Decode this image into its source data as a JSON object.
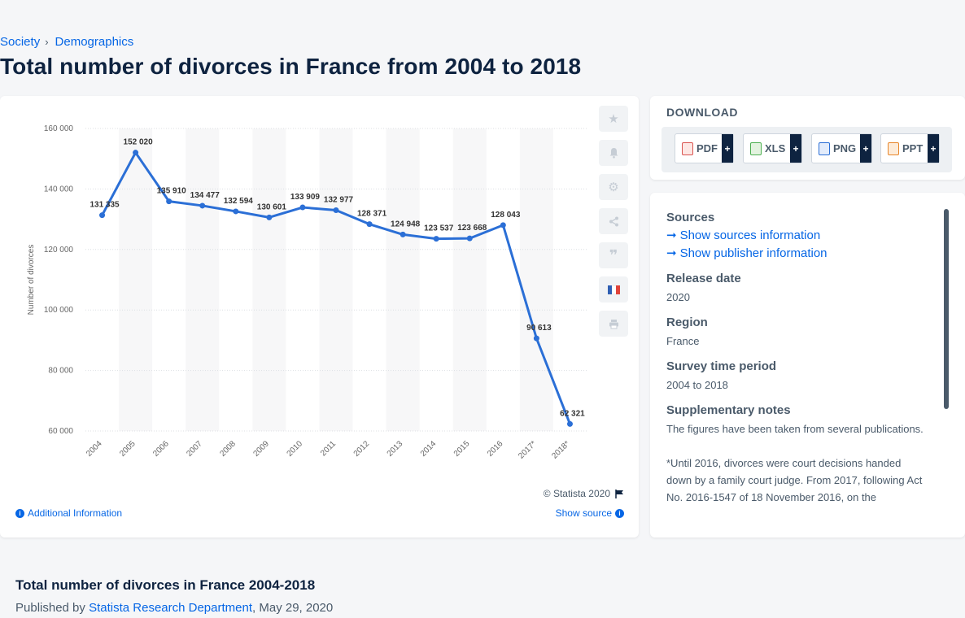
{
  "breadcrumb": {
    "items": [
      "Society",
      "Demographics"
    ]
  },
  "page": {
    "title": "Total number of divorces in France from 2004 to 2018"
  },
  "chart_data": {
    "type": "line",
    "title": "",
    "xlabel": "",
    "ylabel": "Number of divorces",
    "categories": [
      "2004",
      "2005",
      "2006",
      "2007",
      "2008",
      "2009",
      "2010",
      "2011",
      "2012",
      "2013",
      "2014",
      "2015",
      "2016",
      "2017*",
      "2018*"
    ],
    "values": [
      131335,
      152020,
      135910,
      134477,
      132594,
      130601,
      133909,
      132977,
      128371,
      124948,
      123537,
      123668,
      128043,
      90613,
      62321
    ],
    "value_labels": [
      "131 335",
      "152 020",
      "135 910",
      "134 477",
      "132 594",
      "130 601",
      "133 909",
      "132 977",
      "128 371",
      "124 948",
      "123 537",
      "123 668",
      "128 043",
      "90 613",
      "62 321"
    ],
    "yticks": [
      "60 000",
      "80 000",
      "100 000",
      "120 000",
      "140 000",
      "160 000"
    ],
    "ylim": [
      60000,
      160000
    ],
    "grid": true,
    "color": "#2b6fd6"
  },
  "chart_footer": {
    "copyright": "© Statista 2020",
    "additional_info": "Additional Information",
    "show_source": "Show source"
  },
  "toolbar": {
    "icons": [
      "star-icon",
      "bell-icon",
      "gear-icon",
      "share-icon",
      "quote-icon",
      "france-flag-icon",
      "print-icon"
    ]
  },
  "download": {
    "title": "DOWNLOAD",
    "buttons": [
      "PDF",
      "XLS",
      "PNG",
      "PPT"
    ]
  },
  "sources": {
    "sources_label": "Sources",
    "show_sources": "Show sources information",
    "show_publisher": "Show publisher information",
    "release_label": "Release date",
    "release_value": "2020",
    "region_label": "Region",
    "region_value": "France",
    "period_label": "Survey time period",
    "period_value": "2004 to 2018",
    "notes_label": "Supplementary notes",
    "notes_value": "The figures have been taken from several publications.\n\n*Until 2016, divorces were court decisions handed down by a family court judge. From 2017, following Act No. 2016-1547 of 18 November 2016, on the"
  },
  "footer": {
    "title": "Total number of divorces in France 2004-2018",
    "published_by": "Published by",
    "publisher": "Statista Research Department",
    "date": ", May 29, 2020"
  },
  "colors": {
    "accent": "#0666e5",
    "navy": "#0e2340",
    "line": "#2b6fd6"
  }
}
